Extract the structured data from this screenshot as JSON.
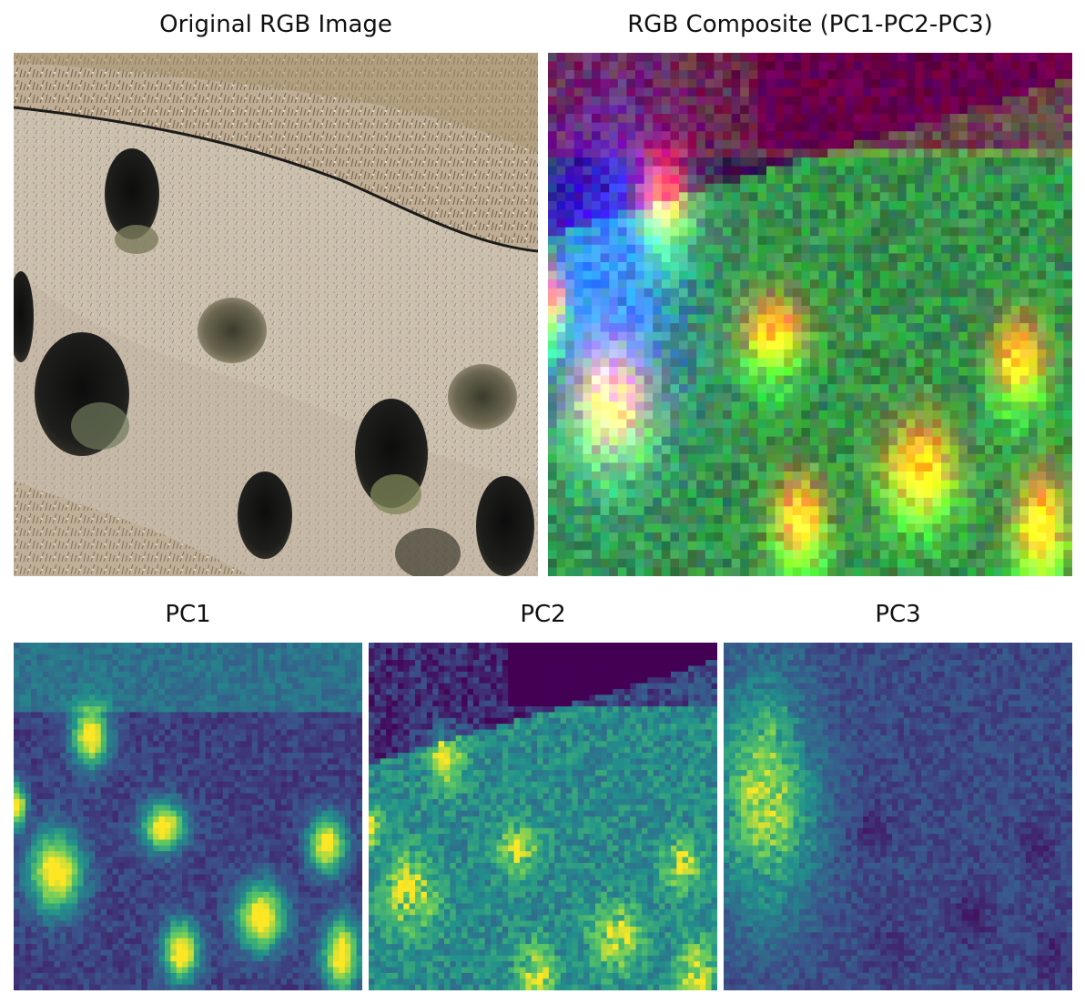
{
  "panels": {
    "original": {
      "title": "Original RGB Image",
      "kind": "photo"
    },
    "composite": {
      "title": "RGB Composite (PC1-PC2-PC3)",
      "kind": "false-color-composite"
    },
    "pc1": {
      "title": "PC1",
      "kind": "heatmap",
      "colormap": "viridis"
    },
    "pc2": {
      "title": "PC2",
      "kind": "heatmap",
      "colormap": "viridis"
    },
    "pc3": {
      "title": "PC3",
      "kind": "heatmap",
      "colormap": "viridis"
    }
  },
  "colors": {
    "viridis_low": "#440154",
    "viridis_mid": "#21918c",
    "viridis_high": "#fde725",
    "soil": "#c9bcab",
    "tree_shadow": "#141414"
  }
}
